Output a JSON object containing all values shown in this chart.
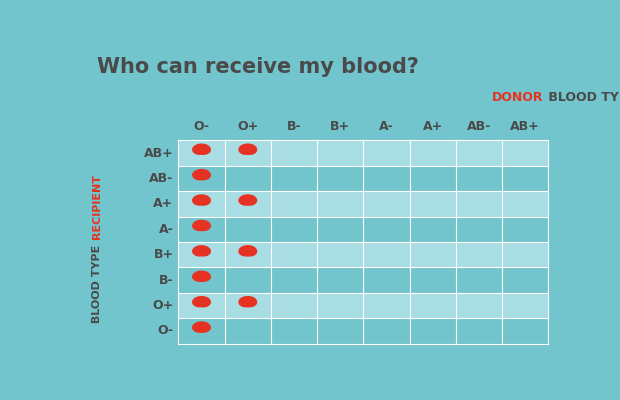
{
  "title": "Who can receive my blood?",
  "title_color": "#4a4a4a",
  "bg_color": "#72c5cd",
  "donor_label": "DONOR",
  "donor_label_color": "#e63222",
  "blood_types_label": " BLOOD TYPES",
  "blood_types_label_color": "#4a4a4a",
  "recipient_label_red": "RECIPIENT",
  "recipient_label_gray": " BLOOD TYPE",
  "recipient_label_color_red": "#e63222",
  "recipient_label_color_gray": "#4a4a4a",
  "donor_types": [
    "O-",
    "O+",
    "B-",
    "B+",
    "A-",
    "A+",
    "AB-",
    "AB+"
  ],
  "recipient_types": [
    "AB+",
    "AB-",
    "A+",
    "A-",
    "B+",
    "B-",
    "O+",
    "O-"
  ],
  "drop_color": "#e63222",
  "grid_line_color": "#ffffff",
  "cell_color_even": "#a8dde3",
  "cell_color_odd": "#72c5cd",
  "drops": [
    [
      1,
      1,
      0,
      0,
      0,
      0,
      0,
      0
    ],
    [
      1,
      0,
      0,
      0,
      0,
      0,
      0,
      0
    ],
    [
      1,
      1,
      0,
      0,
      0,
      0,
      0,
      0
    ],
    [
      1,
      0,
      0,
      0,
      0,
      0,
      0,
      0
    ],
    [
      1,
      1,
      0,
      0,
      0,
      0,
      0,
      0
    ],
    [
      1,
      0,
      0,
      0,
      0,
      0,
      0,
      0
    ],
    [
      1,
      1,
      0,
      0,
      0,
      0,
      0,
      0
    ],
    [
      1,
      0,
      0,
      0,
      0,
      0,
      0,
      0
    ]
  ]
}
